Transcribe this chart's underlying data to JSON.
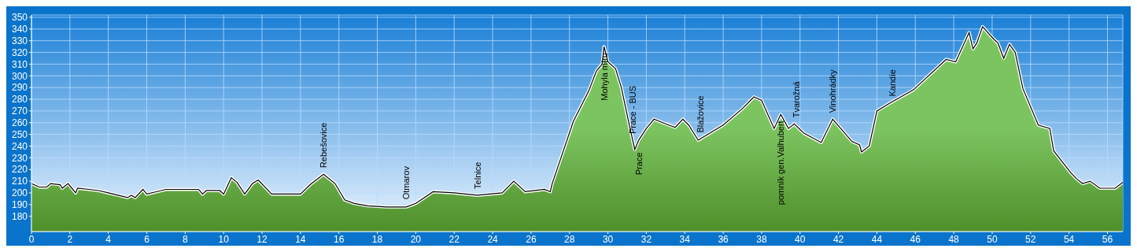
{
  "chart_data": {
    "type": "area",
    "color": "#7cc460",
    "x": [
      0,
      0.4,
      0.8,
      1.0,
      1.5,
      1.6,
      1.9,
      2.1,
      2.3,
      2.4,
      3.0,
      3.5,
      4.0,
      4.5,
      5.0,
      5.2,
      5.4,
      5.8,
      6.0,
      6.5,
      7.0,
      8.0,
      8.7,
      8.9,
      9.1,
      9.8,
      10.0,
      10.4,
      10.7,
      11.1,
      11.5,
      11.8,
      12.5,
      14.0,
      14.5,
      15.2,
      15.8,
      16.3,
      16.8,
      17.5,
      18.5,
      19.5,
      20.0,
      20.9,
      22.0,
      23.2,
      24.5,
      25.1,
      25.7,
      26.7,
      27.0,
      27.1,
      27.6,
      28.2,
      29.0,
      29.4,
      29.7,
      29.8,
      30.0,
      30.4,
      30.7,
      31.1,
      31.4,
      31.6,
      32.0,
      32.4,
      33.0,
      33.5,
      33.9,
      34.2,
      34.7,
      35.0,
      36.0,
      37.0,
      37.6,
      38.0,
      38.65,
      39.0,
      39.4,
      39.7,
      40.2,
      41.1,
      41.7,
      42.7,
      43.1,
      43.2,
      43.6,
      44.0,
      44.7,
      45.9,
      47.6,
      48.1,
      48.8,
      49.0,
      49.2,
      49.5,
      50.1,
      50.3,
      50.6,
      50.9,
      51.2,
      51.6,
      52.4,
      53.0,
      53.2,
      54.1,
      54.4,
      54.7,
      55.1,
      55.6,
      56.4,
      56.8
    ],
    "values": [
      208,
      205,
      205,
      208,
      207,
      204,
      208,
      204,
      200,
      204,
      203,
      202,
      200,
      198,
      196,
      198,
      196,
      203,
      199,
      201,
      203,
      203,
      203,
      199,
      202,
      202,
      199,
      213,
      209,
      199,
      208,
      211,
      199,
      199,
      207,
      216,
      208,
      194,
      191,
      189,
      188,
      188,
      191,
      201,
      200,
      198,
      200,
      210,
      201,
      203,
      201,
      208,
      232,
      261,
      287,
      304,
      310,
      325,
      312,
      306,
      290,
      259,
      237,
      245,
      255,
      263,
      259,
      256,
      263,
      258,
      245,
      248,
      258,
      272,
      282,
      279,
      255,
      267,
      255,
      259,
      251,
      243,
      263,
      244,
      241,
      235,
      240,
      270,
      277,
      288,
      314,
      312,
      337,
      323,
      328,
      342,
      331,
      328,
      315,
      327,
      320,
      289,
      258,
      255,
      236,
      217,
      212,
      208,
      210,
      204,
      204,
      209
    ],
    "xlim": [
      0,
      56.8
    ],
    "ylim": [
      167,
      352
    ],
    "xticks": [
      0,
      2,
      4,
      6,
      8,
      10,
      12,
      14,
      16,
      18,
      20,
      22,
      24,
      26,
      28,
      30,
      32,
      34,
      36,
      38,
      40,
      42,
      44,
      46,
      48,
      50,
      52,
      54,
      56
    ],
    "yticks": [
      180,
      190,
      200,
      210,
      220,
      230,
      240,
      250,
      260,
      270,
      280,
      290,
      300,
      310,
      320,
      330,
      340,
      350
    ],
    "grid": true,
    "annotations": [
      {
        "text": "Rebešovice",
        "x": 15.2,
        "y": 216
      },
      {
        "text": "Otmarov",
        "x": 19.5,
        "y": 189
      },
      {
        "text": "Telnice",
        "x": 23.2,
        "y": 198
      },
      {
        "text": "Mohyla míru",
        "x": 29.8,
        "y": 325
      },
      {
        "text": "Prace - BUS",
        "x": 31.3,
        "y": 245
      },
      {
        "text": "Prace",
        "x": 31.6,
        "y": 240
      },
      {
        "text": "Blažovice",
        "x": 34.8,
        "y": 246
      },
      {
        "text": "pomník gen.Valhubert",
        "x": 39.0,
        "y": 267
      },
      {
        "text": "Tvarožná",
        "x": 39.8,
        "y": 259
      },
      {
        "text": "Vinohrádky",
        "x": 41.7,
        "y": 263
      },
      {
        "text": "Kandie",
        "x": 44.8,
        "y": 277
      }
    ]
  }
}
